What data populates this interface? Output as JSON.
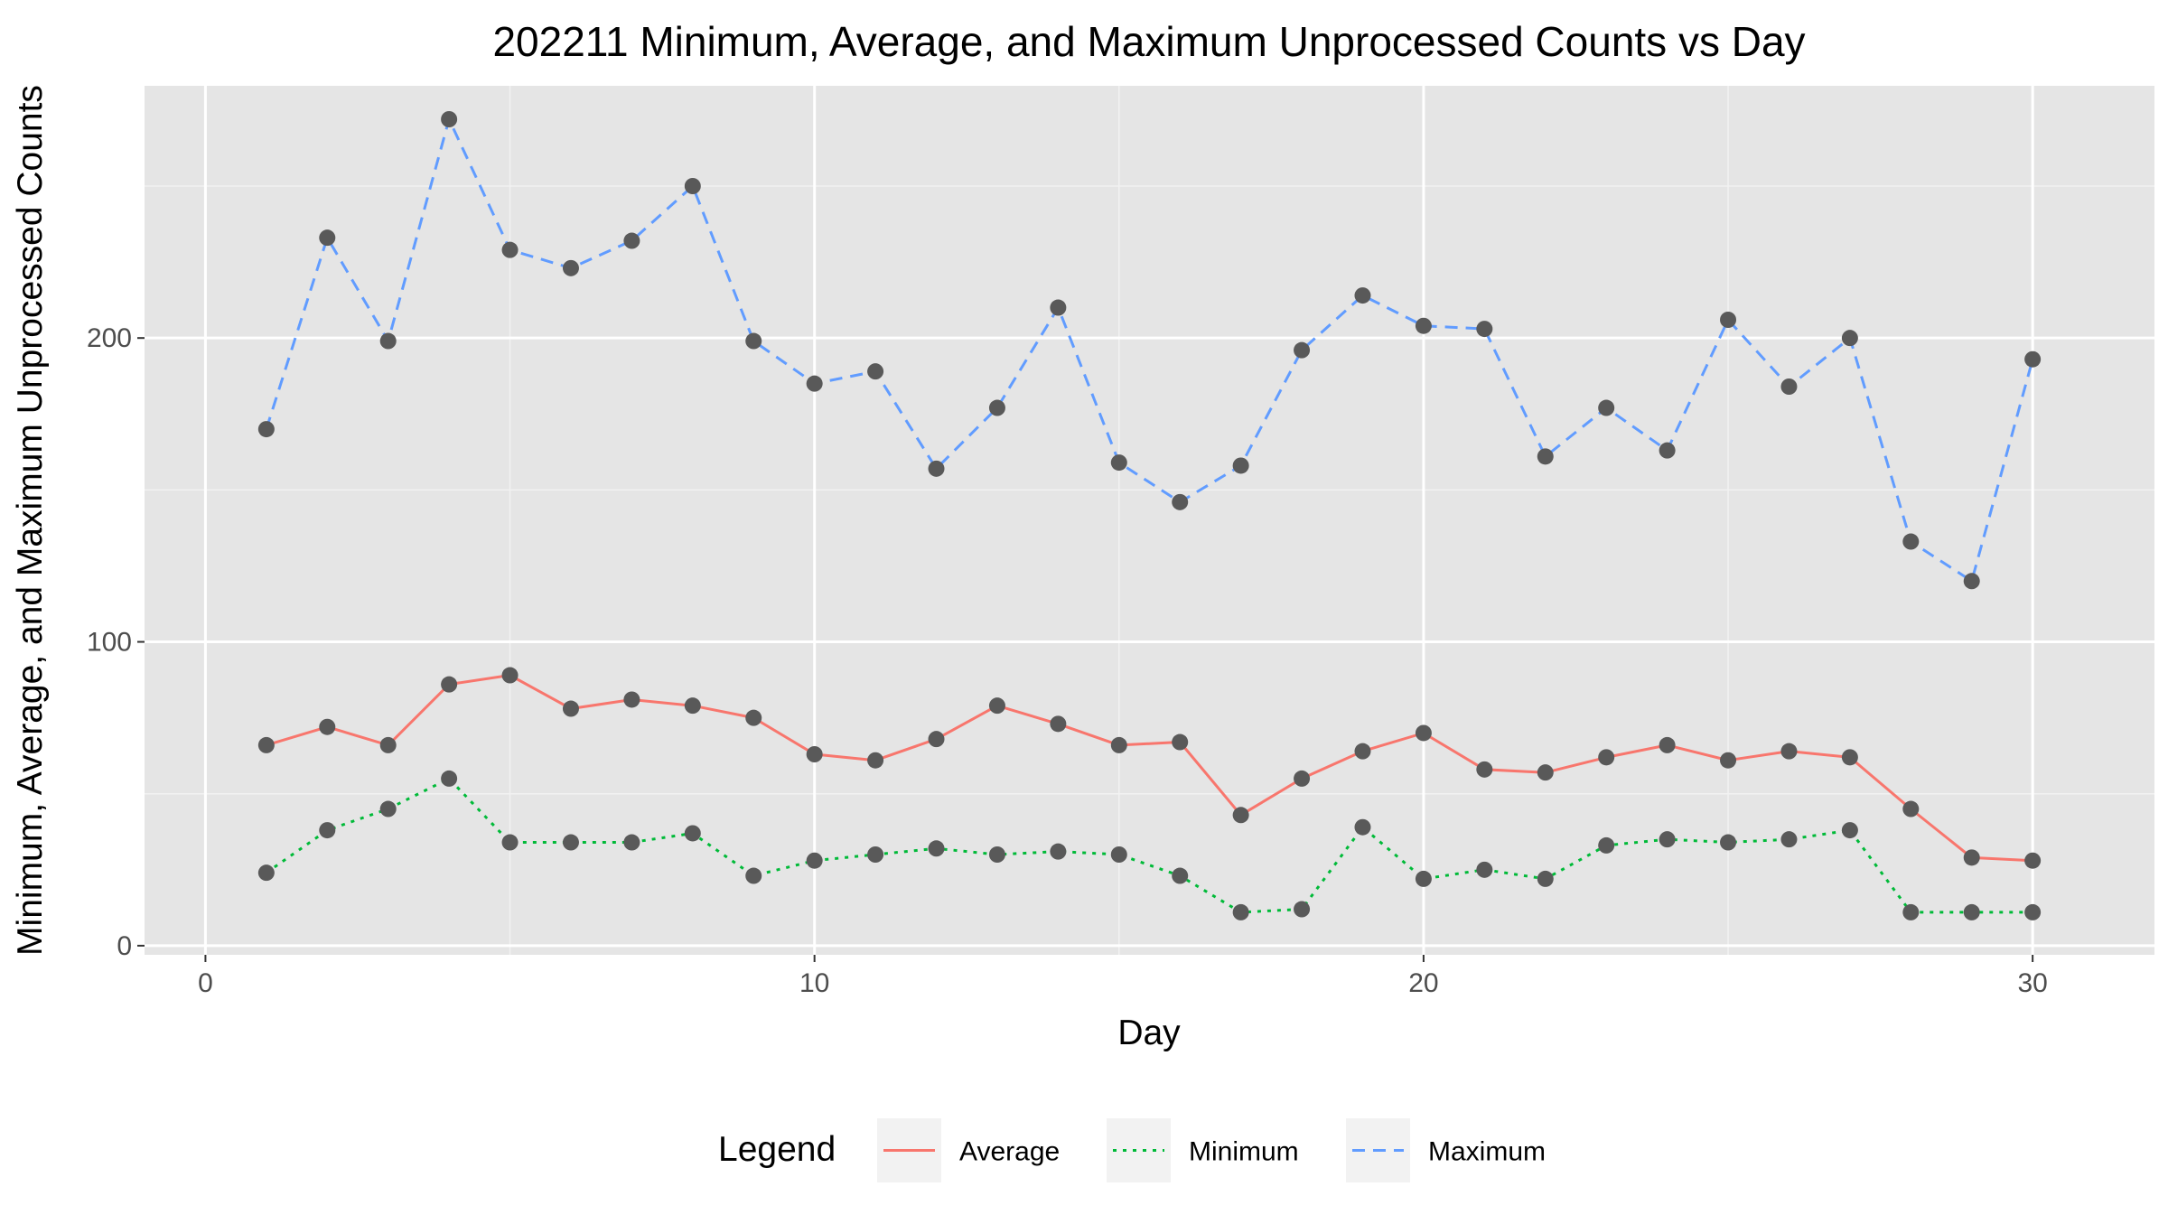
{
  "chart_data": {
    "type": "line",
    "title": "202211 Minimum, Average, and Maximum Unprocessed Counts vs Day",
    "xlabel": "Day",
    "ylabel": "Minimum, Average, and Maximum Unprocessed Counts",
    "xlim": [
      -1,
      32
    ],
    "ylim": [
      -3,
      283
    ],
    "x_ticks": [
      0,
      10,
      20,
      30
    ],
    "y_ticks": [
      0,
      100,
      200
    ],
    "grid": true,
    "panel_background": "#e5e5e5",
    "point_color": "#595959",
    "legend": {
      "title": "Legend",
      "position": "bottom"
    },
    "x": [
      1,
      2,
      3,
      4,
      5,
      6,
      7,
      8,
      9,
      10,
      11,
      12,
      13,
      14,
      15,
      16,
      17,
      18,
      19,
      20,
      21,
      22,
      23,
      24,
      25,
      26,
      27,
      28,
      29,
      30
    ],
    "series": [
      {
        "name": "Average",
        "color": "#f8766d",
        "dash": "solid",
        "values": [
          66,
          72,
          66,
          86,
          89,
          78,
          81,
          79,
          75,
          63,
          61,
          68,
          79,
          73,
          66,
          67,
          43,
          55,
          64,
          70,
          58,
          57,
          62,
          66,
          61,
          64,
          62,
          45,
          29,
          28
        ]
      },
      {
        "name": "Minimum",
        "color": "#00ba38",
        "dash": "dotted",
        "values": [
          24,
          38,
          45,
          55,
          34,
          34,
          34,
          37,
          23,
          28,
          30,
          32,
          30,
          31,
          30,
          23,
          11,
          12,
          39,
          22,
          25,
          22,
          33,
          35,
          34,
          35,
          38,
          11,
          11,
          11
        ]
      },
      {
        "name": "Maximum",
        "color": "#619cff",
        "dash": "dashed",
        "values": [
          170,
          233,
          199,
          272,
          229,
          223,
          232,
          250,
          199,
          185,
          189,
          157,
          177,
          210,
          159,
          146,
          158,
          196,
          214,
          204,
          203,
          161,
          177,
          163,
          206,
          184,
          200,
          133,
          120,
          193
        ]
      }
    ]
  }
}
